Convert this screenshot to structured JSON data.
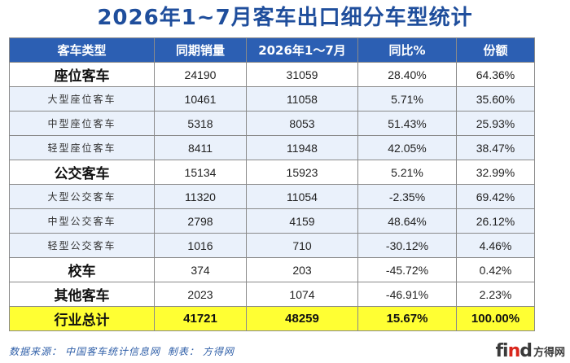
{
  "title": "2026年1~7月客车出口细分车型统计",
  "table": {
    "headers": [
      "客车类型",
      "同期销量",
      "2026年1～7月",
      "同比%",
      "份额"
    ],
    "rows": [
      {
        "kind": "main",
        "cells": [
          "座位客车",
          "24190",
          "31059",
          "28.40%",
          "64.36%"
        ]
      },
      {
        "kind": "sub",
        "cells": [
          "大型座位客车",
          "10461",
          "11058",
          "5.71%",
          "35.60%"
        ]
      },
      {
        "kind": "sub",
        "cells": [
          "中型座位客车",
          "5318",
          "8053",
          "51.43%",
          "25.93%"
        ]
      },
      {
        "kind": "sub",
        "cells": [
          "轻型座位客车",
          "8411",
          "11948",
          "42.05%",
          "38.47%"
        ]
      },
      {
        "kind": "main",
        "cells": [
          "公交客车",
          "15134",
          "15923",
          "5.21%",
          "32.99%"
        ]
      },
      {
        "kind": "sub",
        "cells": [
          "大型公交客车",
          "11320",
          "11054",
          "-2.35%",
          "69.42%"
        ]
      },
      {
        "kind": "sub",
        "cells": [
          "中型公交客车",
          "2798",
          "4159",
          "48.64%",
          "26.12%"
        ]
      },
      {
        "kind": "sub",
        "cells": [
          "轻型公交客车",
          "1016",
          "710",
          "-30.12%",
          "4.46%"
        ]
      },
      {
        "kind": "main",
        "cells": [
          "校车",
          "374",
          "203",
          "-45.72%",
          "0.42%"
        ]
      },
      {
        "kind": "main",
        "cells": [
          "其他客车",
          "2023",
          "1074",
          "-46.91%",
          "2.23%"
        ]
      },
      {
        "kind": "total",
        "cells": [
          "行业总计",
          "41721",
          "48259",
          "15.67%",
          "100.00%"
        ]
      }
    ]
  },
  "footer": {
    "source_label": "数据来源：",
    "source": "中国客车统计信息网",
    "maker_label": "制表：",
    "maker": "方得网"
  },
  "watermark": {
    "logo_prefix": "fi",
    "logo_accent": "n",
    "logo_suffix": "d",
    "text": "方得网"
  }
}
